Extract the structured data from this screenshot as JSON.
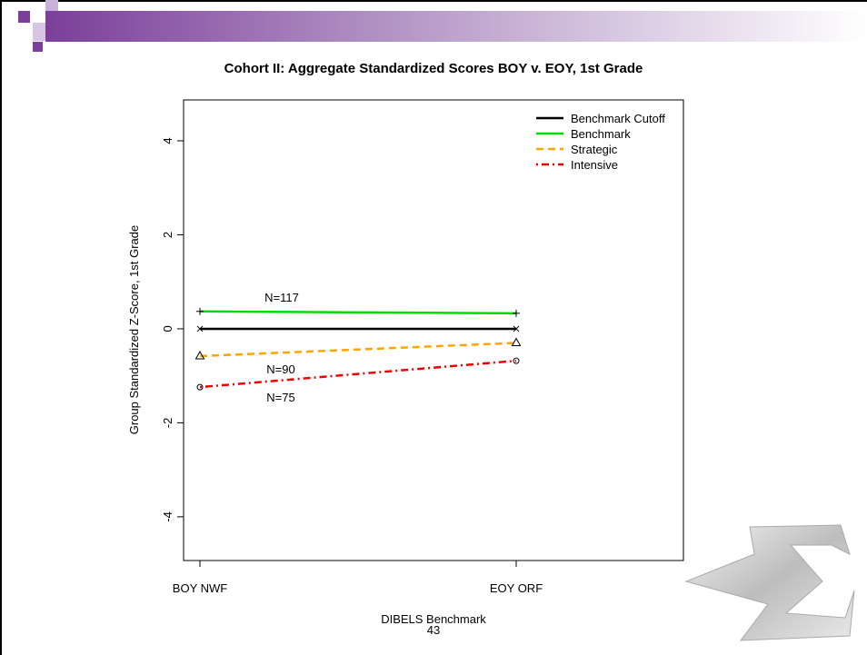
{
  "chart_data": {
    "type": "line",
    "title": "Cohort II: Aggregate Standardized Scores BOY v. EOY, 1st Grade",
    "x_label": "DIBELS Benchmark",
    "y_label": "Group Standardized Z-Score, 1st Grade",
    "categories": [
      "BOY NWF",
      "EOY ORF"
    ],
    "series": [
      {
        "name": "Benchmark Cutoff",
        "color": "#000000",
        "dash": "solid",
        "marker": "x",
        "values": [
          0,
          0
        ]
      },
      {
        "name": "Benchmark",
        "color": "#00dd00",
        "dash": "solid",
        "marker": "plus",
        "values": [
          0.37,
          0.33
        ]
      },
      {
        "name": "Strategic",
        "color": "#ffa500",
        "dash": "dashed",
        "marker": "triangle",
        "values": [
          -0.58,
          -0.3
        ]
      },
      {
        "name": "Intensive",
        "color": "#ee0000",
        "dash": "dotdash",
        "marker": "circle",
        "values": [
          -1.24,
          -0.68
        ]
      }
    ],
    "annotations": [
      "N=117",
      "N=90",
      "N=75"
    ],
    "ylim": [
      -4.93,
      4.87
    ],
    "yticks": [
      -4,
      -2,
      0,
      2,
      4
    ],
    "legend": "top-right"
  },
  "slide": {
    "page_number": "43"
  }
}
